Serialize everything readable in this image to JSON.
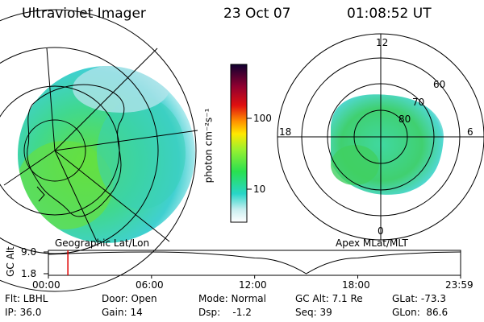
{
  "header": {
    "instrument": "Ultraviolet Imager",
    "date": "23 Oct 07",
    "time": "01:08:52 UT"
  },
  "colorbar": {
    "label": "photon cm⁻²s⁻¹",
    "ticks": [
      "100",
      "10"
    ]
  },
  "left_map": {
    "caption": "Geographic Lat/Lon"
  },
  "right_map": {
    "caption": "Apex MLat/MLT",
    "mlt_labels": [
      "12",
      "18",
      "6",
      "0"
    ],
    "lat_labels": [
      "80",
      "70",
      "60"
    ]
  },
  "strip": {
    "ylabel": "GC Alt",
    "yticks": [
      "9.0",
      "1.8"
    ],
    "xticks": [
      "00:00",
      "06:00",
      "12:00",
      "18:00",
      "23:59"
    ]
  },
  "info": {
    "flt": "Flt: LBHL",
    "ip": "IP: 36.0",
    "door": "Door: Open",
    "gain": "Gain: 14",
    "mode": "Mode: Normal",
    "dsp": "Dsp:    -1.2",
    "gcalt": "GC Alt: 7.1 Re",
    "seq": "Seq: 39",
    "glat": "GLat: -73.3",
    "glon": "GLon:  86.6"
  },
  "chart_data": {
    "type": "line",
    "title": "GC Alt",
    "x": [
      "00:00",
      "06:00",
      "12:00",
      "15:00",
      "18:00",
      "23:59"
    ],
    "series": [
      {
        "values": [
          8.2,
          9.0,
          7.0,
          1.8,
          7.0,
          9.0
        ]
      }
    ],
    "ylim": [
      1.8,
      9.0
    ],
    "current_time_marker": "01:08"
  }
}
